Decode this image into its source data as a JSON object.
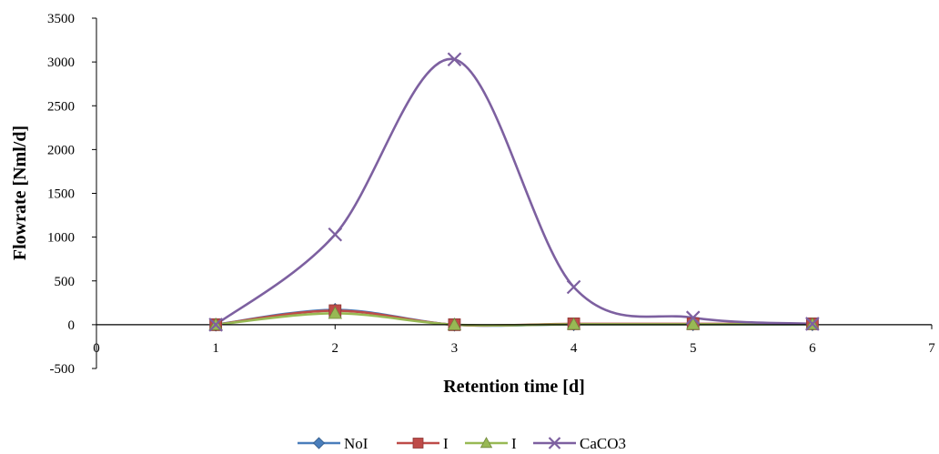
{
  "chart_data": {
    "type": "scatter",
    "subtype": "smooth-line-with-markers",
    "title": "",
    "xlabel": "Retention time [d]",
    "ylabel": "Flowrate [Nml/d]",
    "xlim": [
      0,
      7
    ],
    "ylim": [
      -500,
      3500
    ],
    "xticks": [
      0,
      1,
      2,
      3,
      4,
      5,
      6,
      7
    ],
    "yticks": [
      -500,
      0,
      500,
      1000,
      1500,
      2000,
      2500,
      3000,
      3500
    ],
    "grid": false,
    "legend_position": "bottom",
    "series": [
      {
        "name": "NoI",
        "color": "#4a7ebb",
        "marker": "diamond",
        "x": [
          1,
          2,
          3,
          4,
          5,
          6
        ],
        "y": [
          0,
          170,
          0,
          5,
          5,
          5
        ]
      },
      {
        "name": "I",
        "color": "#be4b48",
        "marker": "square",
        "x": [
          1,
          2,
          3,
          4,
          5,
          6
        ],
        "y": [
          0,
          160,
          0,
          10,
          10,
          10
        ]
      },
      {
        "name": "I",
        "color": "#98b954",
        "marker": "triangle",
        "x": [
          1,
          2,
          3,
          4,
          5,
          6
        ],
        "y": [
          0,
          130,
          0,
          5,
          5,
          5
        ]
      },
      {
        "name": "CaCO3",
        "color": "#7d60a0",
        "marker": "x",
        "x": [
          1,
          2,
          3,
          4,
          5,
          6
        ],
        "y": [
          0,
          1030,
          3030,
          430,
          80,
          10
        ]
      }
    ]
  }
}
